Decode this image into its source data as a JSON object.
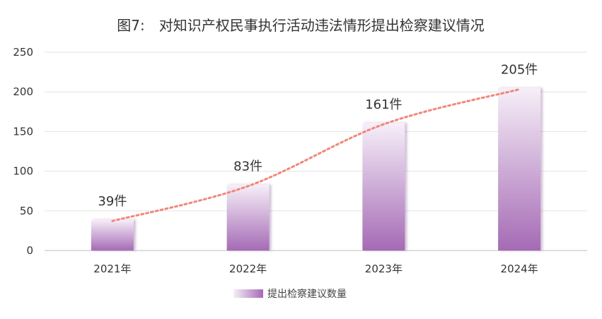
{
  "chart_data": {
    "type": "bar",
    "title": "图7:　对知识产权民事执行活动违法情形提出检察建议情况",
    "categories": [
      "2021年",
      "2022年",
      "2023年",
      "2024年"
    ],
    "values": [
      39,
      83,
      161,
      205
    ],
    "value_labels": [
      "39件",
      "83件",
      "161件",
      "205件"
    ],
    "ylim": [
      0,
      250
    ],
    "yticks": [
      0,
      50,
      100,
      150,
      200,
      250
    ],
    "grid": true,
    "legend_position": "bottom",
    "series": [
      {
        "name": "提出检察建议数量",
        "values": [
          39,
          83,
          161,
          205
        ]
      }
    ],
    "trendline": {
      "style": "dotted",
      "color": "#f0877a"
    },
    "colors": {
      "bar_top": "#f6eff8",
      "bar_bottom": "#a56ab5",
      "trend": "#f0877a",
      "grid": "#e3e3e3",
      "axis": "#bdbdbd",
      "text": "#333333"
    }
  }
}
